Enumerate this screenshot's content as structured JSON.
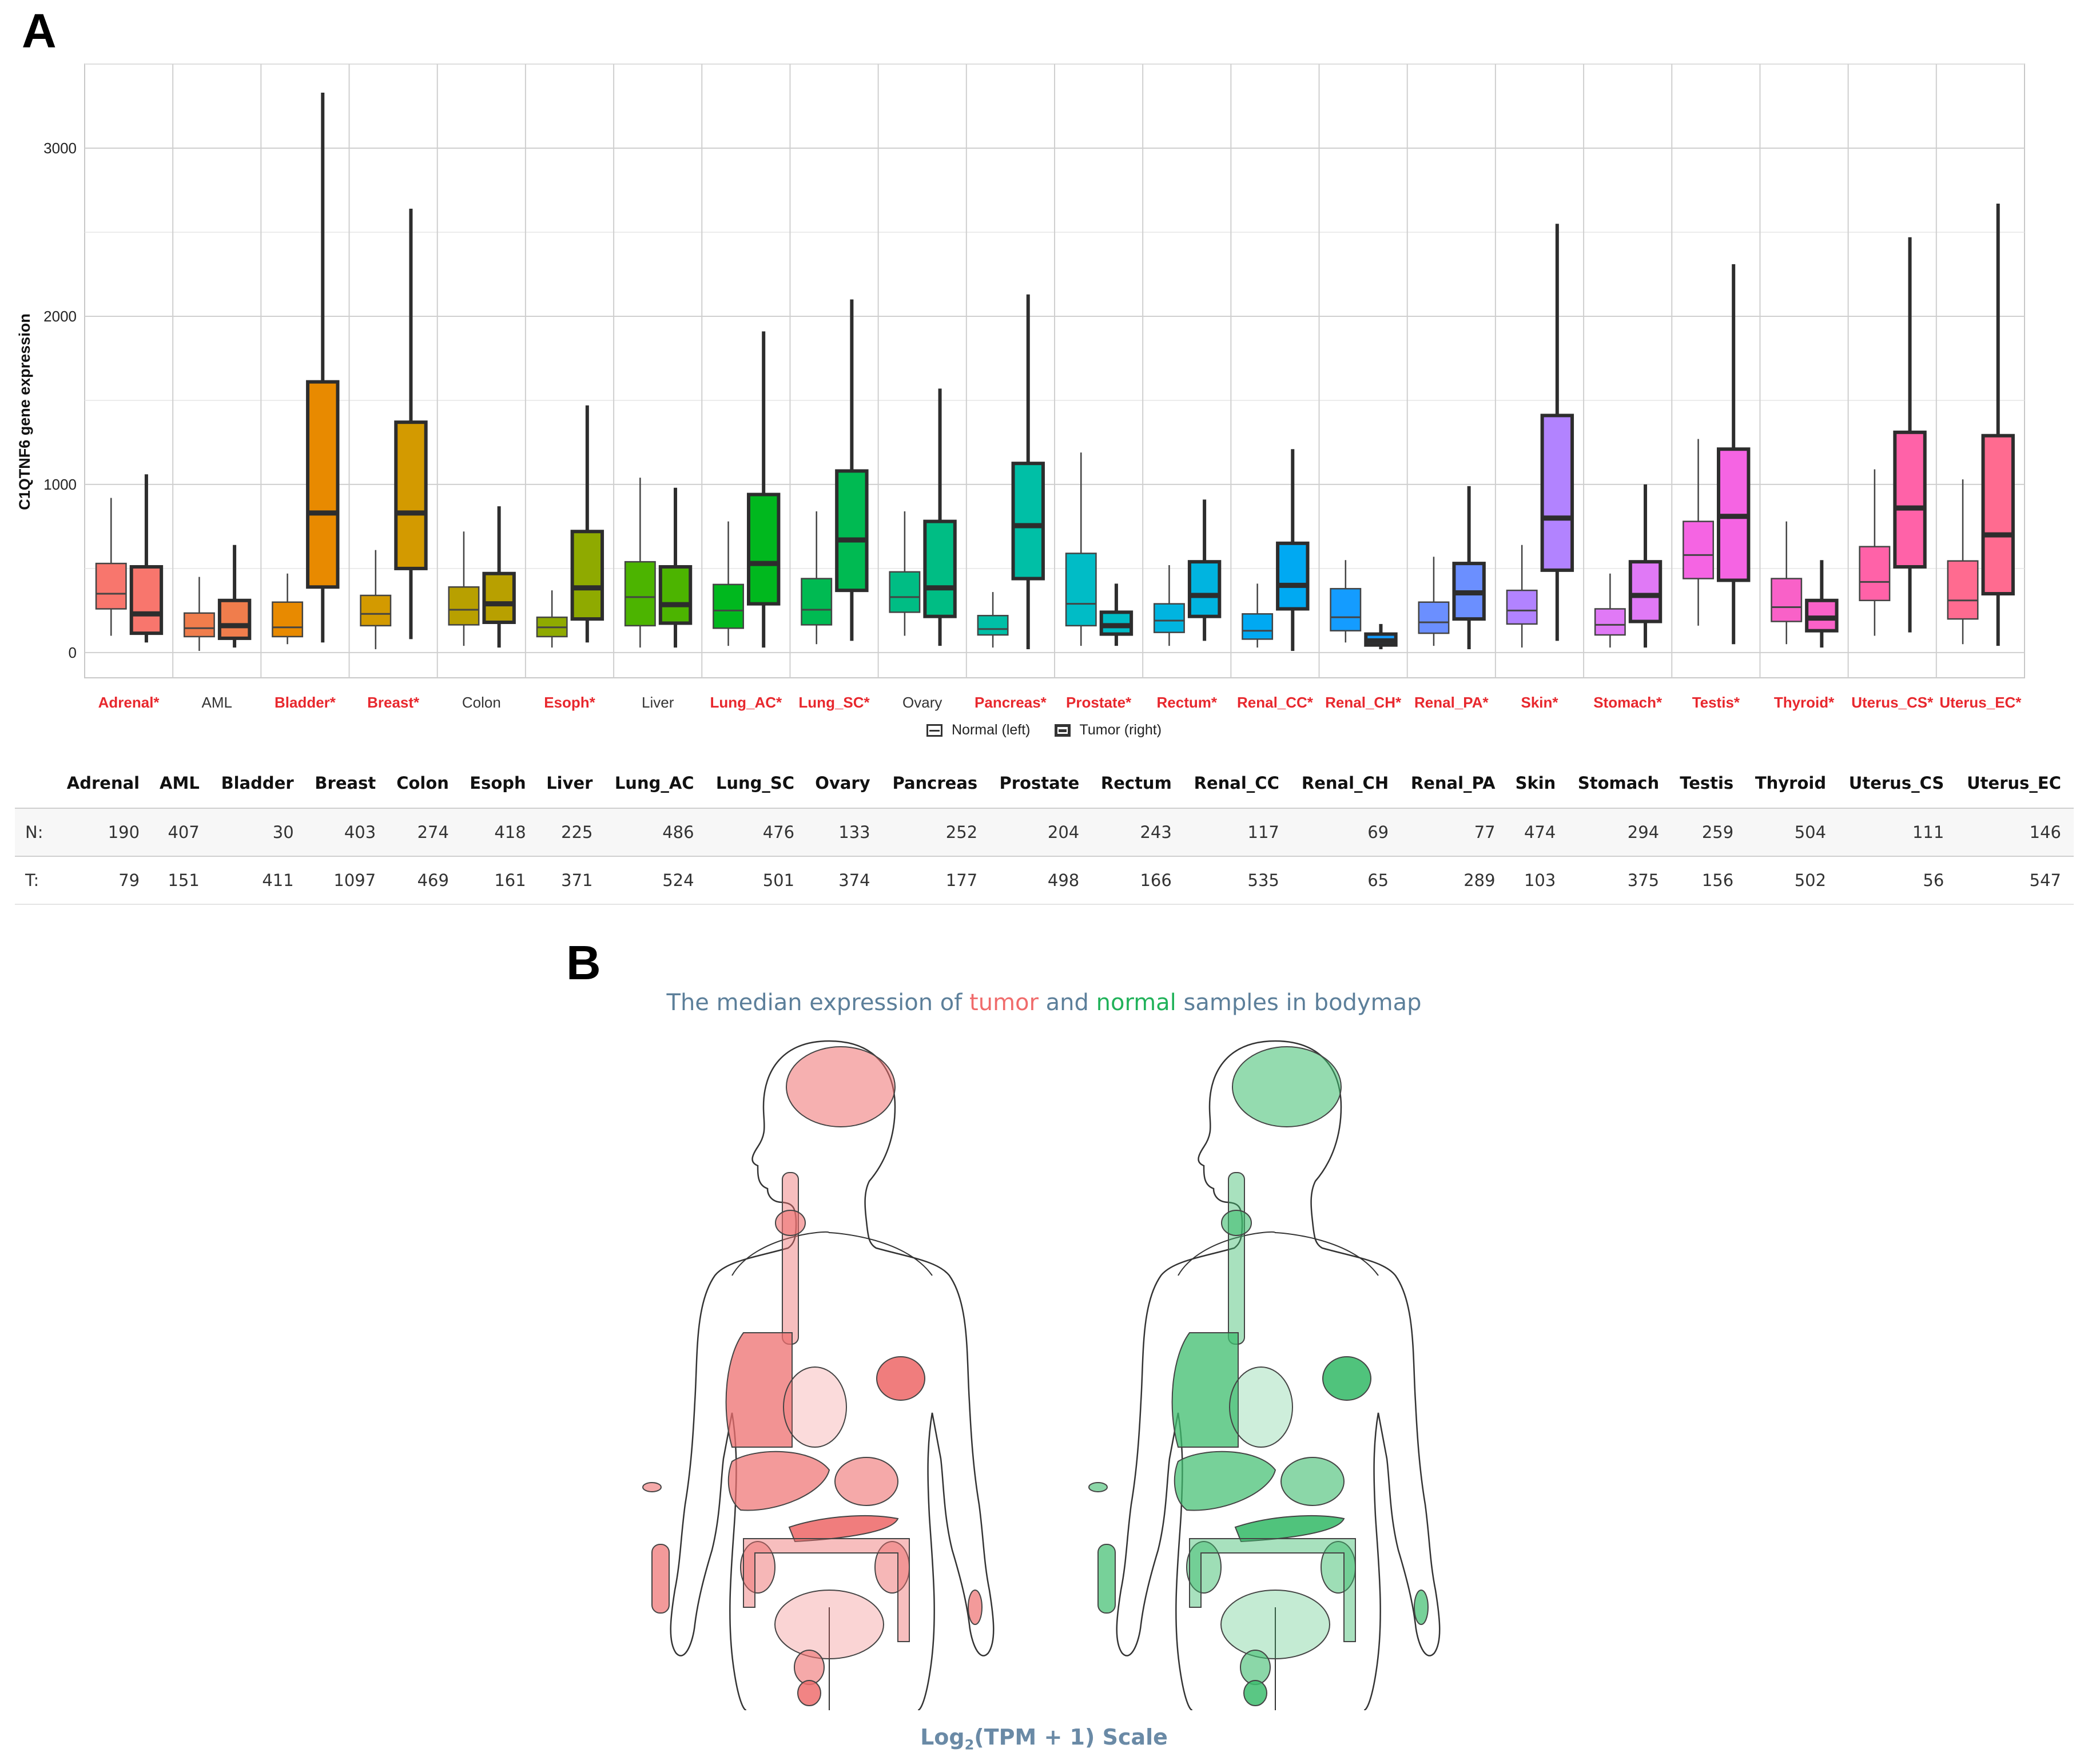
{
  "panel_a_label": "A",
  "panel_b_label": "B",
  "chart_data": {
    "type": "box",
    "ylabel": "C1QTNF6 gene expression",
    "ylim": [
      -150,
      3500
    ],
    "yticks": [
      0,
      1000,
      2000,
      3000
    ],
    "grid": true,
    "legend_position": "bottom",
    "legend": {
      "normal": "Normal (left)",
      "tumor": "Tumor (right)"
    },
    "categories": [
      {
        "label": "Adrenal*",
        "sig": true,
        "color": "#f8766d",
        "normal": {
          "min": 100,
          "q1": 260,
          "median": 350,
          "q3": 530,
          "max": 920
        },
        "tumor": {
          "min": 60,
          "q1": 115,
          "median": 230,
          "q3": 510,
          "max": 1060
        }
      },
      {
        "label": "AML",
        "sig": false,
        "color": "#f07d4c",
        "normal": {
          "min": 10,
          "q1": 95,
          "median": 145,
          "q3": 235,
          "max": 450
        },
        "tumor": {
          "min": 30,
          "q1": 85,
          "median": 160,
          "q3": 310,
          "max": 640
        }
      },
      {
        "label": "Bladder*",
        "sig": true,
        "color": "#e88a00",
        "normal": {
          "min": 50,
          "q1": 95,
          "median": 150,
          "q3": 300,
          "max": 470
        },
        "tumor": {
          "min": 60,
          "q1": 390,
          "median": 830,
          "q3": 1610,
          "max": 3330
        }
      },
      {
        "label": "Breast*",
        "sig": true,
        "color": "#d39a00",
        "normal": {
          "min": 20,
          "q1": 160,
          "median": 230,
          "q3": 340,
          "max": 610
        },
        "tumor": {
          "min": 80,
          "q1": 500,
          "median": 830,
          "q3": 1370,
          "max": 2640
        }
      },
      {
        "label": "Colon",
        "sig": false,
        "color": "#b8a000",
        "normal": {
          "min": 40,
          "q1": 165,
          "median": 255,
          "q3": 390,
          "max": 720
        },
        "tumor": {
          "min": 30,
          "q1": 180,
          "median": 290,
          "q3": 470,
          "max": 870
        }
      },
      {
        "label": "Esoph*",
        "sig": true,
        "color": "#8faa00",
        "normal": {
          "min": 30,
          "q1": 95,
          "median": 150,
          "q3": 210,
          "max": 370
        },
        "tumor": {
          "min": 60,
          "q1": 200,
          "median": 385,
          "q3": 720,
          "max": 1470
        }
      },
      {
        "label": "Liver",
        "sig": false,
        "color": "#4cb400",
        "normal": {
          "min": 30,
          "q1": 160,
          "median": 330,
          "q3": 540,
          "max": 1040
        },
        "tumor": {
          "min": 30,
          "q1": 175,
          "median": 285,
          "q3": 510,
          "max": 980
        }
      },
      {
        "label": "Lung_AC*",
        "sig": true,
        "color": "#00b81e",
        "normal": {
          "min": 40,
          "q1": 145,
          "median": 250,
          "q3": 405,
          "max": 780
        },
        "tumor": {
          "min": 30,
          "q1": 290,
          "median": 530,
          "q3": 940,
          "max": 1910
        }
      },
      {
        "label": "Lung_SC*",
        "sig": true,
        "color": "#00ba52",
        "normal": {
          "min": 50,
          "q1": 165,
          "median": 255,
          "q3": 440,
          "max": 840
        },
        "tumor": {
          "min": 70,
          "q1": 370,
          "median": 670,
          "q3": 1080,
          "max": 2100
        }
      },
      {
        "label": "Ovary",
        "sig": false,
        "color": "#00bd84",
        "normal": {
          "min": 100,
          "q1": 240,
          "median": 330,
          "q3": 480,
          "max": 840
        },
        "tumor": {
          "min": 40,
          "q1": 215,
          "median": 385,
          "q3": 780,
          "max": 1570
        }
      },
      {
        "label": "Pancreas*",
        "sig": true,
        "color": "#00bfa6",
        "normal": {
          "min": 30,
          "q1": 105,
          "median": 140,
          "q3": 220,
          "max": 360
        },
        "tumor": {
          "min": 20,
          "q1": 440,
          "median": 755,
          "q3": 1125,
          "max": 2130
        }
      },
      {
        "label": "Prostate*",
        "sig": true,
        "color": "#00bcc6",
        "normal": {
          "min": 40,
          "q1": 160,
          "median": 290,
          "q3": 590,
          "max": 1190
        },
        "tumor": {
          "min": 40,
          "q1": 110,
          "median": 160,
          "q3": 240,
          "max": 410
        }
      },
      {
        "label": "Rectum*",
        "sig": true,
        "color": "#00b4e0",
        "normal": {
          "min": 40,
          "q1": 120,
          "median": 190,
          "q3": 290,
          "max": 520
        },
        "tumor": {
          "min": 70,
          "q1": 215,
          "median": 340,
          "q3": 540,
          "max": 910
        }
      },
      {
        "label": "Renal_CC*",
        "sig": true,
        "color": "#00a9f2",
        "normal": {
          "min": 30,
          "q1": 80,
          "median": 130,
          "q3": 230,
          "max": 410
        },
        "tumor": {
          "min": 10,
          "q1": 260,
          "median": 400,
          "q3": 650,
          "max": 1210
        }
      },
      {
        "label": "Renal_CH*",
        "sig": true,
        "color": "#149cff",
        "normal": {
          "min": 60,
          "q1": 130,
          "median": 210,
          "q3": 380,
          "max": 550
        },
        "tumor": {
          "min": 20,
          "q1": 45,
          "median": 70,
          "q3": 110,
          "max": 170
        }
      },
      {
        "label": "Renal_PA*",
        "sig": true,
        "color": "#6b8fff",
        "normal": {
          "min": 40,
          "q1": 115,
          "median": 180,
          "q3": 300,
          "max": 570
        },
        "tumor": {
          "min": 20,
          "q1": 200,
          "median": 355,
          "q3": 530,
          "max": 990
        }
      },
      {
        "label": "Skin*",
        "sig": true,
        "color": "#b283ff",
        "normal": {
          "min": 30,
          "q1": 170,
          "median": 250,
          "q3": 370,
          "max": 640
        },
        "tumor": {
          "min": 70,
          "q1": 490,
          "median": 800,
          "q3": 1410,
          "max": 2550
        }
      },
      {
        "label": "Stomach*",
        "sig": true,
        "color": "#e079f6",
        "normal": {
          "min": 30,
          "q1": 105,
          "median": 165,
          "q3": 260,
          "max": 470
        },
        "tumor": {
          "min": 30,
          "q1": 185,
          "median": 340,
          "q3": 540,
          "max": 1000
        }
      },
      {
        "label": "Testis*",
        "sig": true,
        "color": "#f564e3",
        "normal": {
          "min": 160,
          "q1": 440,
          "median": 580,
          "q3": 780,
          "max": 1270
        },
        "tumor": {
          "min": 50,
          "q1": 430,
          "median": 810,
          "q3": 1210,
          "max": 2310
        }
      },
      {
        "label": "Thyroid*",
        "sig": true,
        "color": "#f961c8",
        "normal": {
          "min": 50,
          "q1": 185,
          "median": 270,
          "q3": 440,
          "max": 780
        },
        "tumor": {
          "min": 30,
          "q1": 130,
          "median": 205,
          "q3": 310,
          "max": 550
        }
      },
      {
        "label": "Uterus_CS*",
        "sig": true,
        "color": "#ff62a8",
        "normal": {
          "min": 100,
          "q1": 310,
          "median": 420,
          "q3": 630,
          "max": 1090
        },
        "tumor": {
          "min": 120,
          "q1": 510,
          "median": 860,
          "q3": 1310,
          "max": 2470
        }
      },
      {
        "label": "Uterus_EC*",
        "sig": true,
        "color": "#ff6b90",
        "normal": {
          "min": 50,
          "q1": 200,
          "median": 310,
          "q3": 545,
          "max": 1030
        },
        "tumor": {
          "min": 40,
          "q1": 350,
          "median": 700,
          "q3": 1290,
          "max": 2670
        }
      }
    ]
  },
  "table": {
    "columns": [
      "Adrenal",
      "AML",
      "Bladder",
      "Breast",
      "Colon",
      "Esoph",
      "Liver",
      "Lung_AC",
      "Lung_SC",
      "Ovary",
      "Pancreas",
      "Prostate",
      "Rectum",
      "Renal_CC",
      "Renal_CH",
      "Renal_PA",
      "Skin",
      "Stomach",
      "Testis",
      "Thyroid",
      "Uterus_CS",
      "Uterus_EC"
    ],
    "rows": [
      {
        "label": "N:",
        "values": [
          "190",
          "407",
          "30",
          "403",
          "274",
          "418",
          "225",
          "486",
          "476",
          "133",
          "252",
          "204",
          "243",
          "117",
          "69",
          "77",
          "474",
          "294",
          "259",
          "504",
          "111",
          "146"
        ]
      },
      {
        "label": "T:",
        "values": [
          "79",
          "151",
          "411",
          "1097",
          "469",
          "161",
          "371",
          "524",
          "501",
          "374",
          "177",
          "498",
          "166",
          "535",
          "65",
          "289",
          "103",
          "375",
          "156",
          "502",
          "56",
          "547"
        ]
      }
    ]
  },
  "bodymap": {
    "title_pre": "The median expression of ",
    "title_tumor": "tumor",
    "title_mid": " and ",
    "title_normal": "normal",
    "title_post": " samples in bodymap",
    "scale_label_pre": "Log",
    "scale_label_sub": "2",
    "scale_label_post": "(TPM + 1) Scale",
    "tumor_color": "#ee6f6f",
    "normal_color": "#3dbd6e"
  }
}
